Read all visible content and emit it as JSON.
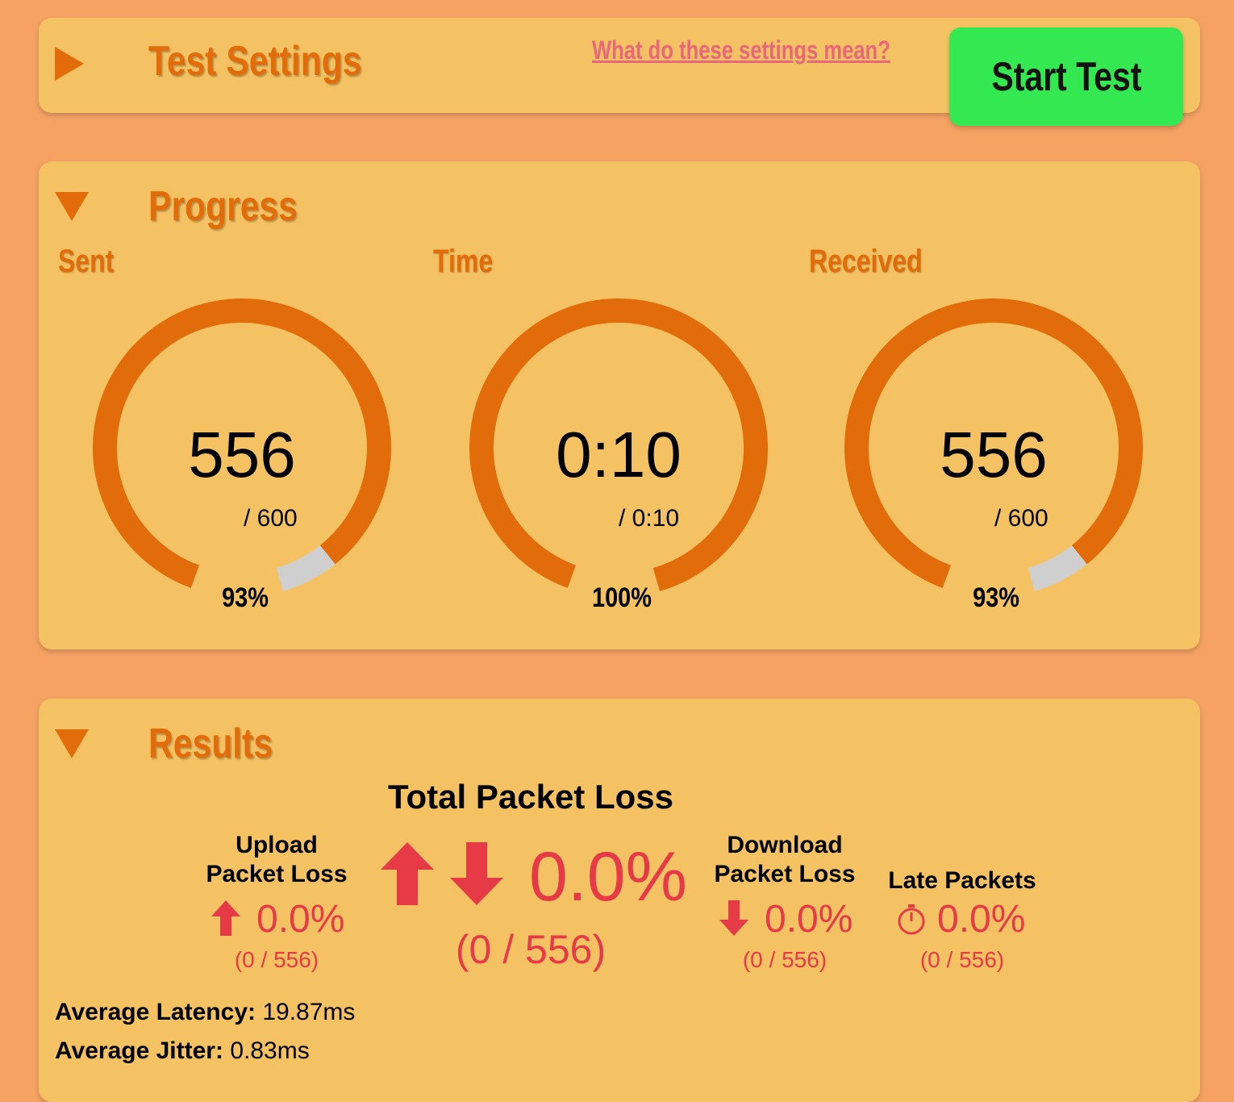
{
  "settings": {
    "title": "Test Settings",
    "help_link": "What do these settings mean?",
    "start_label": "Start Test",
    "expanded": false
  },
  "progress": {
    "title": "Progress",
    "expanded": true,
    "gauges": [
      {
        "label": "Sent",
        "value": "556",
        "total": "/ 600",
        "percent_label": "93%",
        "fraction": 0.93
      },
      {
        "label": "Time",
        "value": "0:10",
        "total": "/ 0:10",
        "percent_label": "100%",
        "fraction": 1.0
      },
      {
        "label": "Received",
        "value": "556",
        "total": "/ 600",
        "percent_label": "93%",
        "fraction": 0.93
      }
    ]
  },
  "results": {
    "title": "Results",
    "expanded": true,
    "total": {
      "title": "Total Packet Loss",
      "value": "0.0%",
      "count": "(0 / 556)"
    },
    "upload": {
      "title1": "Upload",
      "title2": "Packet Loss",
      "value": "0.0%",
      "count": "(0 / 556)"
    },
    "download": {
      "title1": "Download",
      "title2": "Packet Loss",
      "value": "0.0%",
      "count": "(0 / 556)"
    },
    "late": {
      "title": "Late Packets",
      "value": "0.0%",
      "count": "(0 / 556)"
    },
    "latency_label": "Average Latency:",
    "latency_value": "19.87ms",
    "jitter_label": "Average Jitter:",
    "jitter_value": "0.83ms"
  },
  "colors": {
    "background": "#F5A263",
    "card": "#F4C262",
    "accent": "#E36C0A",
    "loss": "#E63A47",
    "start": "#33E850",
    "link": "#E8687A",
    "track": "#CFCFCF"
  }
}
